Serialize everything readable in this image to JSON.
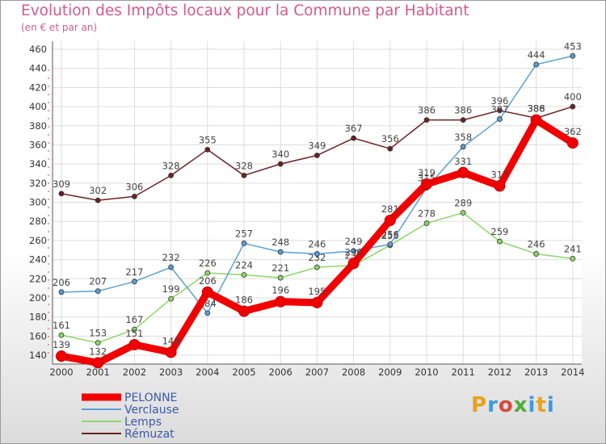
{
  "title": "Evolution des Impôts locaux pour la Commune par Habitant",
  "subtitle": "(en € et par an)",
  "logo": {
    "letters": [
      "P",
      "r",
      "o",
      "x",
      "i",
      "t",
      "i"
    ],
    "colors": [
      "#e8a21b",
      "#3f9ad8",
      "#d94a3c",
      "#4cae3a",
      "#3f9ad8",
      "#e8a21b",
      "#3f9ad8"
    ]
  },
  "chart_data": {
    "type": "line",
    "title": "Evolution des Impôts locaux pour la Commune par Habitant",
    "subtitle": "(en € et par an)",
    "xlabel": "",
    "ylabel": "",
    "categories": [
      "2000",
      "2001",
      "2002",
      "2003",
      "2004",
      "2005",
      "2006",
      "2007",
      "2008",
      "2009",
      "2010",
      "2011",
      "2012",
      "2013",
      "2014"
    ],
    "ylim": [
      140,
      460
    ],
    "yticks": [
      140,
      160,
      180,
      200,
      220,
      240,
      260,
      280,
      300,
      320,
      340,
      360,
      380,
      400,
      420,
      440,
      460
    ],
    "grid": true,
    "series": [
      {
        "name": "Rémuzat",
        "color": "#6b2222",
        "thick": false,
        "values": [
          309,
          302,
          306,
          328,
          355,
          328,
          340,
          349,
          367,
          356,
          386,
          386,
          396,
          388,
          400
        ],
        "labels": [
          "309",
          "302",
          "306",
          "328",
          "355",
          "328",
          "340",
          "349",
          "367",
          "356",
          "386",
          "386",
          "396",
          "388",
          "400"
        ]
      },
      {
        "name": "Lemps",
        "color": "#8ed66a",
        "thick": false,
        "values": [
          161,
          153,
          167,
          199,
          226,
          224,
          221,
          232,
          234,
          255,
          278,
          289,
          259,
          246,
          241
        ],
        "labels": [
          "161",
          "153",
          "167",
          "199",
          "226",
          "224",
          "221",
          "232",
          "234",
          "255",
          "278",
          "289",
          "259",
          "246",
          "241"
        ]
      },
      {
        "name": "Verclause",
        "color": "#5b9fd6",
        "thick": false,
        "values": [
          206,
          207,
          217,
          232,
          184,
          257,
          248,
          246,
          249,
          256,
          315,
          358,
          387,
          444,
          453
        ],
        "labels": [
          "206",
          "207",
          "217",
          "232",
          "184",
          "257",
          "248",
          "246",
          "249",
          "256",
          "315",
          "358",
          "387",
          "444",
          "453"
        ]
      },
      {
        "name": "PELONNE",
        "color": "#f20000",
        "thick": true,
        "values": [
          139,
          132,
          151,
          143,
          206,
          186,
          196,
          195,
          236,
          281,
          319,
          331,
          317,
          386,
          362
        ],
        "labels": [
          "139",
          "132",
          "151",
          "143",
          "206",
          "186",
          "196",
          "195",
          "236",
          "281",
          "319",
          "331",
          "317",
          "386",
          "362"
        ]
      }
    ],
    "legend": [
      {
        "name": "PELONNE",
        "color": "#f20000",
        "text_color": "#3a5aa8",
        "thick": true
      },
      {
        "name": "Verclause",
        "color": "#5b9fd6",
        "text_color": "#3a5aa8",
        "thick": false
      },
      {
        "name": "Lemps",
        "color": "#8ed66a",
        "text_color": "#3a5aa8",
        "thick": false
      },
      {
        "name": "Rémuzat",
        "color": "#6b2222",
        "text_color": "#3a5aa8",
        "thick": false
      }
    ],
    "legend_position": "bottom-left"
  }
}
